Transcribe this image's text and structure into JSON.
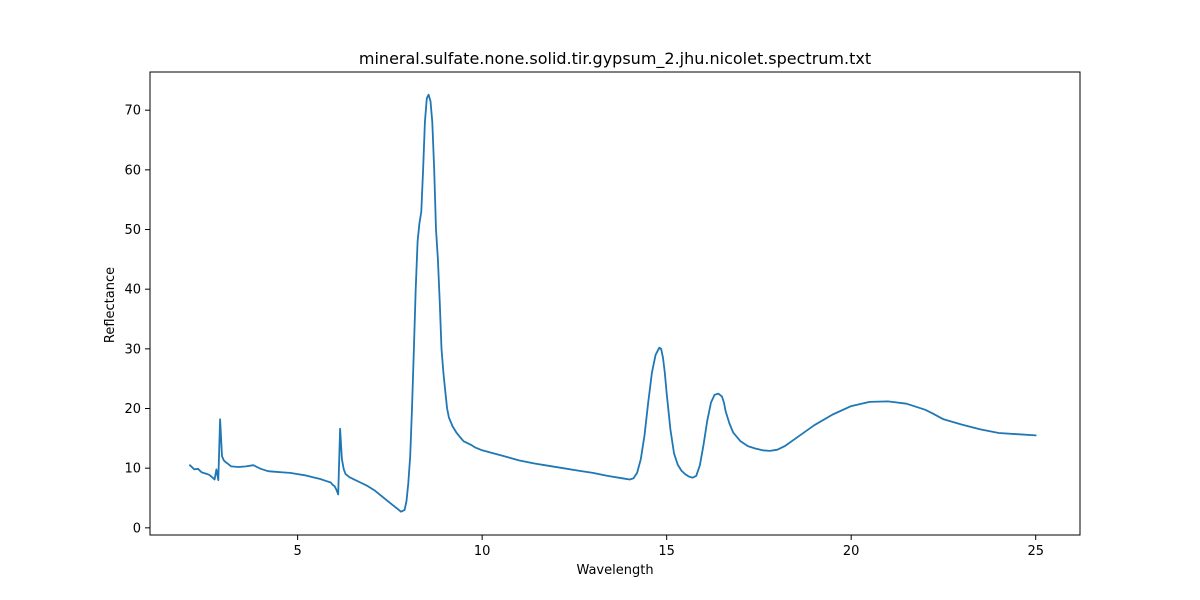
{
  "chart_data": {
    "type": "line",
    "title": "mineral.sulfate.none.solid.tir.gypsum_2.jhu.nicolet.spectrum.txt",
    "xlabel": "Wavelength",
    "ylabel": "Reflectance",
    "xlim": [
      1.0,
      26.2
    ],
    "ylim": [
      -1.2,
      76.4
    ],
    "xticks": [
      5,
      10,
      15,
      20,
      25
    ],
    "yticks": [
      0,
      10,
      20,
      30,
      40,
      50,
      60,
      70
    ],
    "grid": false,
    "series_color": "#1f77b4",
    "series": [
      {
        "x": [
          2.08,
          2.2,
          2.3,
          2.4,
          2.5,
          2.6,
          2.7,
          2.75,
          2.8,
          2.85,
          2.9,
          2.95,
          3.0,
          3.05,
          3.1,
          3.2,
          3.4,
          3.6,
          3.8,
          3.9,
          4.0,
          4.2,
          4.4,
          4.6,
          4.8,
          5.0,
          5.2,
          5.4,
          5.6,
          5.8,
          5.9,
          5.95,
          6.0,
          6.05,
          6.1,
          6.15,
          6.2,
          6.25,
          6.3,
          6.4,
          6.5,
          6.7,
          6.9,
          7.1,
          7.3,
          7.5,
          7.7,
          7.8,
          7.9,
          7.95,
          8.0,
          8.05,
          8.1,
          8.15,
          8.2,
          8.25,
          8.3,
          8.35,
          8.4,
          8.45,
          8.5,
          8.55,
          8.6,
          8.65,
          8.7,
          8.75,
          8.8,
          8.85,
          8.9,
          8.95,
          9.0,
          9.05,
          9.1,
          9.2,
          9.3,
          9.4,
          9.5,
          9.6,
          9.7,
          9.8,
          10.0,
          10.3,
          10.6,
          11.0,
          11.4,
          11.8,
          12.2,
          12.6,
          13.0,
          13.4,
          13.8,
          14.0,
          14.1,
          14.2,
          14.3,
          14.4,
          14.5,
          14.6,
          14.7,
          14.8,
          14.85,
          14.9,
          14.95,
          15.0,
          15.1,
          15.2,
          15.3,
          15.4,
          15.5,
          15.6,
          15.7,
          15.8,
          15.9,
          16.0,
          16.1,
          16.2,
          16.3,
          16.4,
          16.5,
          16.55,
          16.6,
          16.7,
          16.8,
          17.0,
          17.2,
          17.4,
          17.6,
          17.8,
          18.0,
          18.2,
          18.5,
          19.0,
          19.5,
          20.0,
          20.5,
          21.0,
          21.5,
          22.0,
          22.2,
          22.5,
          23.0,
          23.5,
          24.0,
          24.5,
          25.0
        ],
        "y": [
          10.5,
          9.8,
          9.9,
          9.3,
          9.1,
          8.9,
          8.4,
          8.1,
          9.8,
          8.0,
          18.2,
          12.0,
          11.3,
          11.0,
          10.8,
          10.3,
          10.2,
          10.3,
          10.5,
          10.2,
          9.9,
          9.5,
          9.4,
          9.3,
          9.2,
          9.0,
          8.8,
          8.5,
          8.2,
          7.8,
          7.6,
          7.2,
          7.0,
          6.4,
          5.6,
          16.6,
          11.5,
          9.8,
          9.0,
          8.5,
          8.2,
          7.6,
          7.0,
          6.2,
          5.2,
          4.2,
          3.2,
          2.7,
          3.0,
          4.5,
          7.5,
          12.0,
          20.0,
          30.0,
          40.0,
          48.0,
          51.0,
          53.0,
          60.0,
          68.0,
          72.0,
          72.6,
          71.5,
          68.0,
          60.0,
          50.0,
          45.0,
          38.0,
          30.0,
          26.0,
          23.0,
          20.0,
          18.5,
          17.0,
          16.0,
          15.2,
          14.5,
          14.2,
          13.9,
          13.5,
          13.0,
          12.5,
          12.0,
          11.3,
          10.8,
          10.4,
          10.0,
          9.6,
          9.2,
          8.7,
          8.3,
          8.1,
          8.3,
          9.2,
          11.5,
          15.5,
          21.0,
          26.0,
          29.0,
          30.2,
          30.0,
          28.5,
          26.0,
          22.5,
          16.5,
          12.5,
          10.6,
          9.6,
          9.0,
          8.6,
          8.4,
          8.7,
          10.5,
          14.0,
          18.0,
          21.0,
          22.3,
          22.5,
          22.0,
          21.0,
          19.5,
          17.5,
          16.0,
          14.5,
          13.7,
          13.3,
          13.0,
          12.9,
          13.1,
          13.7,
          15.0,
          17.2,
          19.0,
          20.4,
          21.1,
          21.2,
          20.8,
          19.8,
          19.2,
          18.2,
          17.3,
          16.5,
          15.9,
          15.7,
          15.5
        ]
      }
    ]
  }
}
